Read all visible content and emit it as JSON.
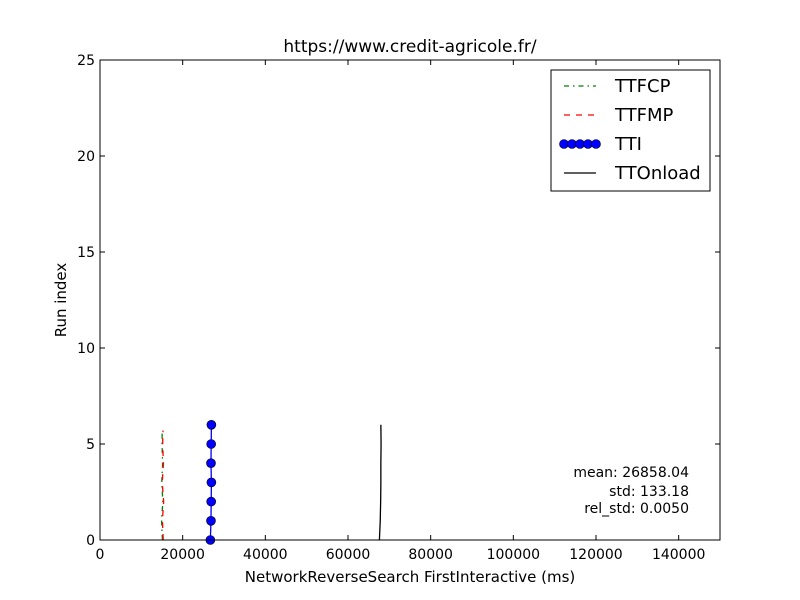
{
  "chart_data": {
    "type": "line",
    "title": "https://www.credit-agricole.fr/",
    "xlabel": "NetworkReverseSearch FirstInteractive (ms)",
    "ylabel": "Run index",
    "xlim": [
      0,
      150000
    ],
    "ylim": [
      0,
      25
    ],
    "xticks": [
      0,
      20000,
      40000,
      60000,
      80000,
      100000,
      120000,
      140000
    ],
    "xtick_labels": [
      "0",
      "20000",
      "40000",
      "60000",
      "80000",
      "100000",
      "120000",
      "140000"
    ],
    "yticks": [
      0,
      5,
      10,
      15,
      20,
      25
    ],
    "ytick_labels": [
      "0",
      "5",
      "10",
      "15",
      "20",
      "25"
    ],
    "grid": false,
    "legend_position": "top-right",
    "series": [
      {
        "name": "TTFCP",
        "color": "#008000",
        "style": "dashdot",
        "marker": "none",
        "x": [
          15100,
          14900,
          15200,
          14950,
          15150,
          15000,
          15050
        ],
        "y": [
          0,
          1,
          2,
          3,
          4,
          5,
          5.7
        ]
      },
      {
        "name": "TTFMP",
        "color": "#ff0000",
        "style": "dashed",
        "marker": "none",
        "x": [
          15300,
          15100,
          15400,
          15050,
          15350,
          15150,
          15250
        ],
        "y": [
          0,
          1,
          2,
          3,
          4,
          5,
          5.7
        ]
      },
      {
        "name": "TTI",
        "color": "#0000ff",
        "style": "solid",
        "marker": "circle",
        "x": [
          26700,
          26850,
          26900,
          26950,
          26850,
          26900,
          26950
        ],
        "y": [
          0,
          1,
          2,
          3,
          4,
          5,
          6
        ]
      },
      {
        "name": "TTOnload",
        "color": "#000000",
        "style": "solid",
        "marker": "none",
        "x": [
          67600,
          67800,
          67900,
          67950,
          67950,
          68000,
          67950
        ],
        "y": [
          0,
          1,
          2,
          3,
          4,
          5,
          6
        ]
      }
    ],
    "annotations": {
      "mean": "mean: 26858.04",
      "std": "std: 133.18",
      "rel_std": "rel_std: 0.0050"
    }
  }
}
